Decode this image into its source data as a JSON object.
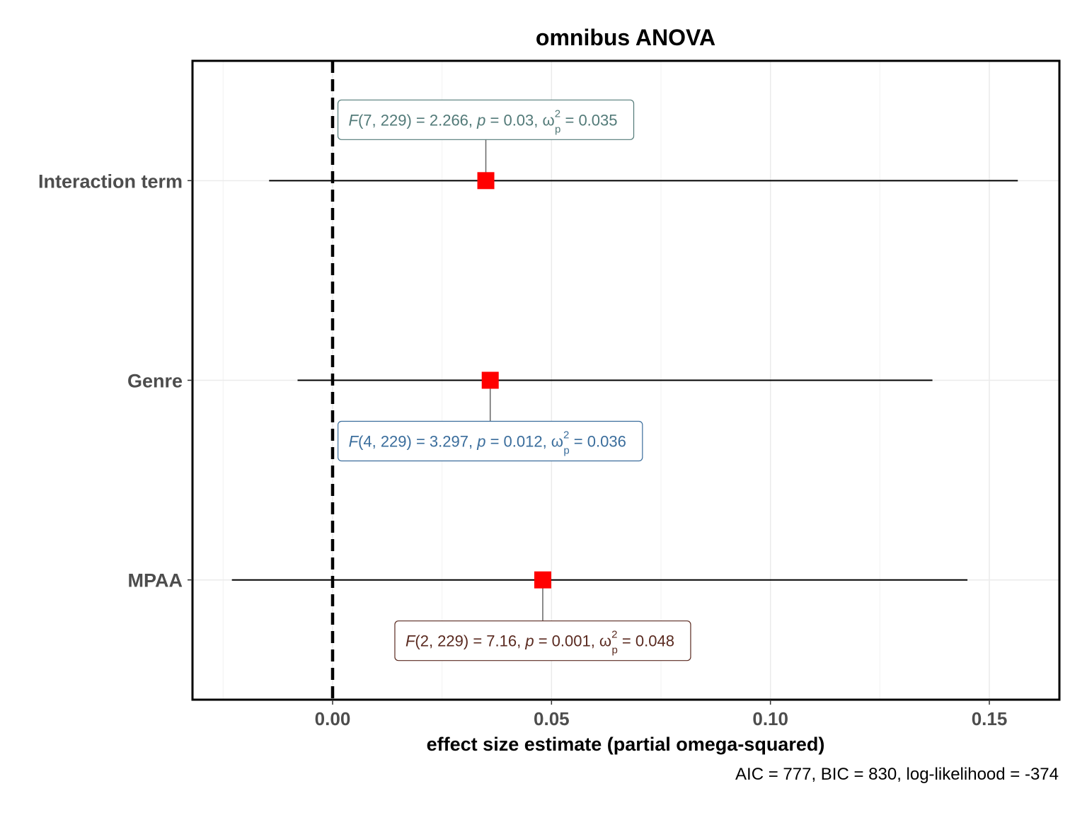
{
  "chart_data": {
    "type": "scatter",
    "title": "omnibus ANOVA",
    "xlabel": "effect size estimate (partial omega-squared)",
    "ylabel": "",
    "caption": "AIC = 777, BIC = 830, log-likelihood = -374",
    "xlim": [
      -0.032,
      0.166
    ],
    "x_ticks": [
      0.0,
      0.05,
      0.1,
      0.15
    ],
    "x_tick_labels": [
      "0.00",
      "0.05",
      "0.10",
      "0.15"
    ],
    "grid": true,
    "reference_line": {
      "x": 0,
      "style": "dashed"
    },
    "point_color": "#ff0000",
    "terms": [
      {
        "name": "Interaction term",
        "estimate": 0.035,
        "conf_low": -0.0145,
        "conf_high": 0.1565,
        "label_color": "#527a78",
        "label_position": "above",
        "label": {
          "df1": "7",
          "df2": "229",
          "F": "2.266",
          "p": "0.03",
          "omega": "0.035"
        }
      },
      {
        "name": "Genre",
        "estimate": 0.036,
        "conf_low": -0.008,
        "conf_high": 0.137,
        "label_color": "#3a6d9c",
        "label_position": "below",
        "label": {
          "df1": "4",
          "df2": "229",
          "F": "3.297",
          "p": "0.012",
          "omega": "0.036"
        }
      },
      {
        "name": "MPAA",
        "estimate": 0.048,
        "conf_low": -0.023,
        "conf_high": 0.145,
        "label_color": "#5a2a20",
        "label_position": "below",
        "label": {
          "df1": "2",
          "df2": "229",
          "F": "7.16",
          "p": "0.001",
          "omega": "0.048"
        }
      }
    ]
  }
}
